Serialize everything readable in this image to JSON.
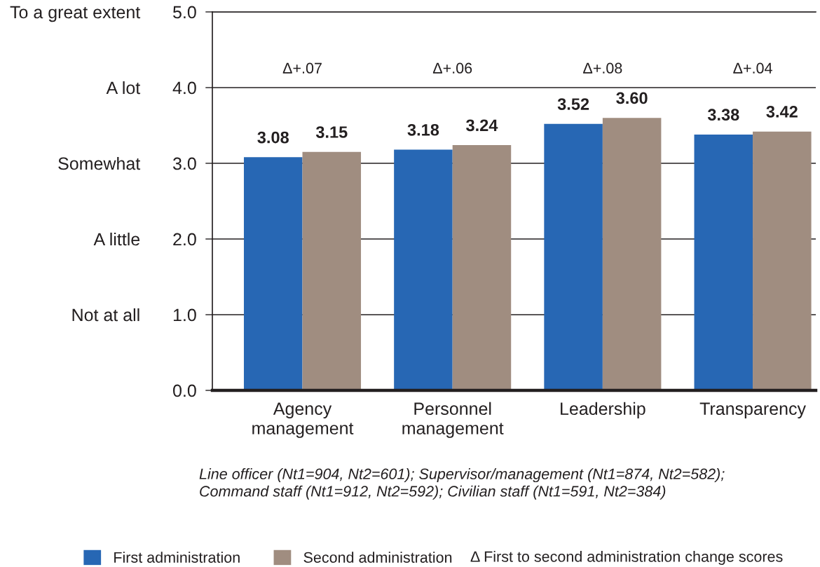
{
  "chart_data": {
    "type": "bar",
    "categories": [
      "Agency management",
      "Personnel management",
      "Leadership",
      "Transparency"
    ],
    "series": [
      {
        "name": "First administration",
        "color": "#2767b4",
        "values": [
          3.08,
          3.18,
          3.52,
          3.38
        ],
        "value_labels": [
          "3.08",
          "3.18",
          "3.52",
          "3.38"
        ]
      },
      {
        "name": "Second administration",
        "color": "#a08d80",
        "values": [
          3.15,
          3.24,
          3.6,
          3.42
        ],
        "value_labels": [
          "3.15",
          "3.24",
          "3.60",
          "3.42"
        ]
      }
    ],
    "ylim": [
      0,
      5
    ],
    "yticks": [
      {
        "value": 0,
        "label": "0.0"
      },
      {
        "value": 1,
        "label": "1.0"
      },
      {
        "value": 2,
        "label": "2.0"
      },
      {
        "value": 3,
        "label": "3.0"
      },
      {
        "value": 4,
        "label": "4.0"
      },
      {
        "value": 5,
        "label": "5.0"
      }
    ],
    "y2_categories": [
      "To a great extent",
      "A lot",
      "Somewhat",
      "A little",
      "Not at all",
      null
    ],
    "grid": "y",
    "legend": "bottom",
    "annotations": [
      "Δ+.07",
      "Δ+.06",
      "Δ+.08",
      "Δ+.04",
      "Line officer (Nt1=904, Nt2=601); Supervisor/management (Nt1=874, Nt2=582); Command staff (Nt1=912, Nt2=592); Civilian staff (Nt1=591, Nt2=384)",
      "Δ First to second administration change scores"
    ]
  }
}
